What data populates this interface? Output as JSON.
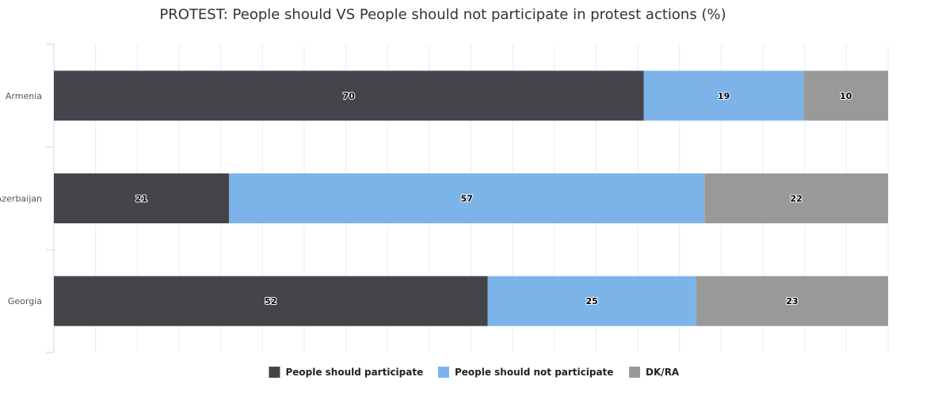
{
  "chart_data": {
    "type": "bar",
    "orientation": "horizontal",
    "stacking": "percent",
    "title": "PROTEST: People should VS People should not participate in protest actions (%)",
    "categories": [
      "Armenia",
      "Azerbaijan",
      "Georgia"
    ],
    "series": [
      {
        "name": "People should participate",
        "color": "#45444a",
        "values": [
          70,
          21,
          52
        ]
      },
      {
        "name": "People should not participate",
        "color": "#7cb4ea",
        "values": [
          19,
          57,
          25
        ]
      },
      {
        "name": "DK/RA",
        "color": "#999999",
        "values": [
          10,
          22,
          23
        ]
      }
    ],
    "xlim": [
      0,
      100
    ],
    "grid": true,
    "legend_position": "bottom-center"
  }
}
